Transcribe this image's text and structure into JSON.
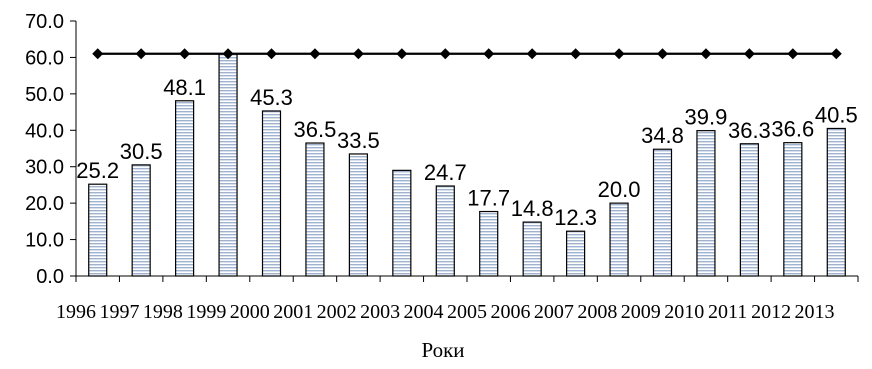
{
  "chart_data": {
    "type": "bar",
    "categories": [
      "1996",
      "1997",
      "1998",
      "1999",
      "2000",
      "2001",
      "2002",
      "2003",
      "2004",
      "2005",
      "2006",
      "2007",
      "2008",
      "2009",
      "2010",
      "2011",
      "2012",
      "2013"
    ],
    "series": [
      {
        "type": "bar",
        "values": [
          25.2,
          30.5,
          48.1,
          61.0,
          45.3,
          36.5,
          33.5,
          29.0,
          24.7,
          17.7,
          14.8,
          12.3,
          20.0,
          34.8,
          39.9,
          36.3,
          36.6,
          40.5
        ],
        "data_labels": [
          "25.2",
          "30.5",
          "48.1",
          "",
          "45.3",
          "36.5",
          "33.5",
          "",
          "24.7",
          "17.7",
          "14.8",
          "12.3",
          "20.0",
          "34.8",
          "39.9",
          "36.3",
          "36.6",
          "40.5"
        ],
        "fill": "#c9d6e8",
        "pattern": "horizontal-stripes"
      },
      {
        "type": "line",
        "values": [
          61.0,
          61.0,
          61.0,
          61.0,
          61.0,
          61.0,
          61.0,
          61.0,
          61.0,
          61.0,
          61.0,
          61.0,
          61.0,
          61.0,
          61.0,
          61.0,
          61.0,
          61.0
        ],
        "marker": "diamond",
        "color": "#000000"
      }
    ],
    "title": "",
    "xlabel": "Роки",
    "ylabel": "",
    "ylim": [
      0,
      70
    ],
    "yticks": [
      "0.0",
      "10.0",
      "20.0",
      "30.0",
      "40.0",
      "50.0",
      "60.0",
      "70.0"
    ],
    "grid": false,
    "legend": "none"
  }
}
